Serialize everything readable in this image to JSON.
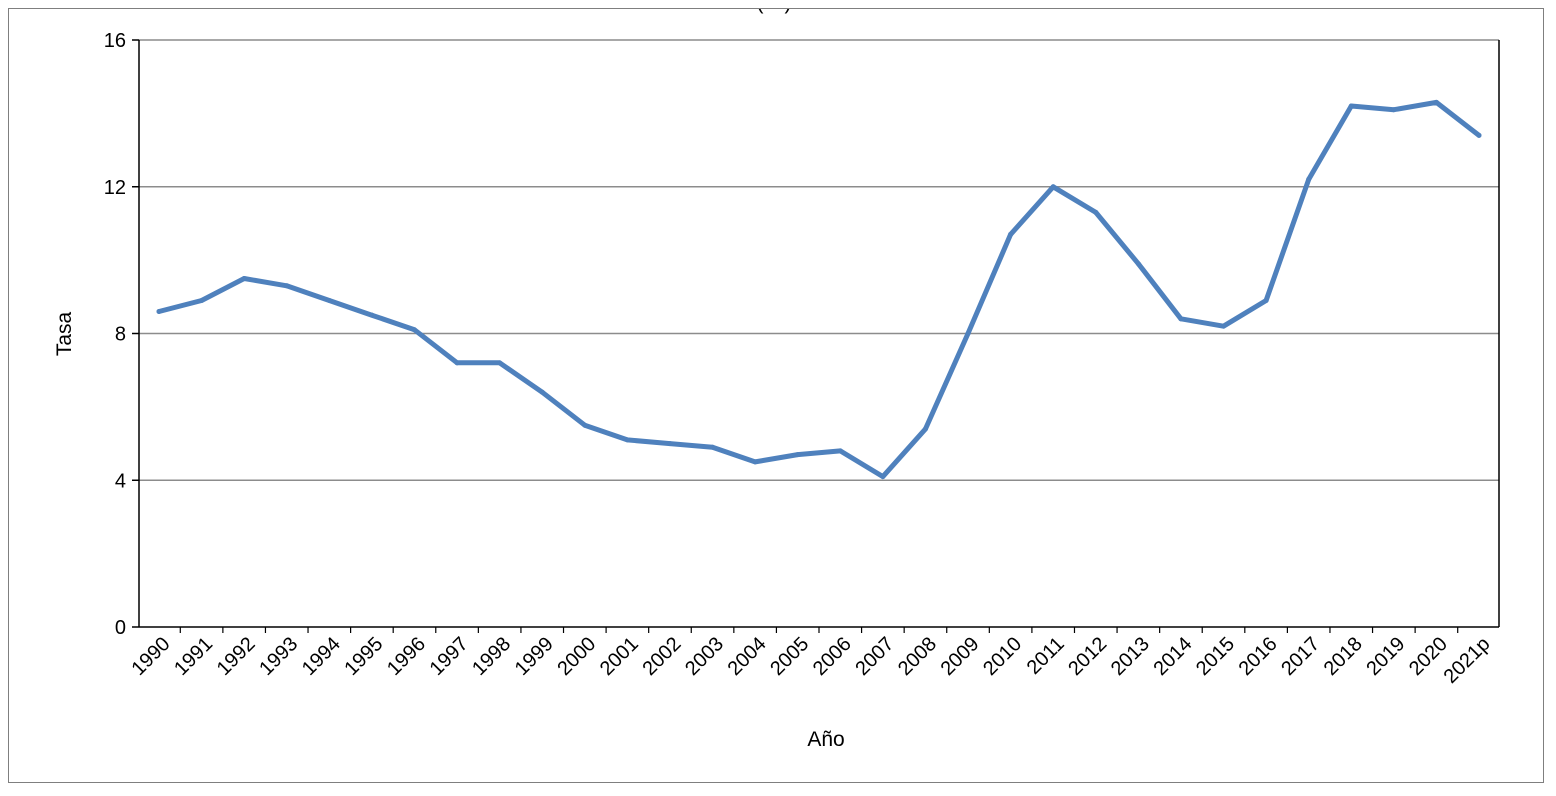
{
  "chart_data": {
    "type": "line",
    "title": "(…)",
    "xlabel": "Año",
    "ylabel": "Tasa",
    "ylim": [
      0,
      16
    ],
    "yticks": [
      "0",
      "4",
      "8",
      "12",
      "16"
    ],
    "grid": true,
    "legend": "none",
    "colors": {
      "series": "#4f81bd",
      "grid": "#8c8c8c",
      "axis": "#000000"
    },
    "categories": [
      "1990",
      "1991",
      "1992",
      "1993",
      "1994",
      "1995",
      "1996",
      "1997",
      "1998",
      "1999",
      "2000",
      "2001",
      "2002",
      "2003",
      "2004",
      "2005",
      "2006",
      "2007",
      "2008",
      "2009",
      "2010",
      "2011",
      "2012",
      "2013",
      "2014",
      "2015",
      "2016",
      "2017",
      "2018",
      "2019",
      "2020",
      "2021p"
    ],
    "series": [
      {
        "values": [
          8.6,
          8.9,
          9.5,
          9.3,
          8.9,
          8.5,
          8.1,
          7.2,
          7.2,
          6.4,
          5.5,
          5.1,
          5.0,
          4.9,
          4.5,
          4.7,
          4.8,
          4.1,
          5.4,
          8.0,
          10.7,
          12.0,
          11.3,
          9.9,
          8.4,
          8.2,
          8.9,
          12.2,
          14.2,
          14.1,
          14.3,
          13.4
        ]
      }
    ]
  }
}
